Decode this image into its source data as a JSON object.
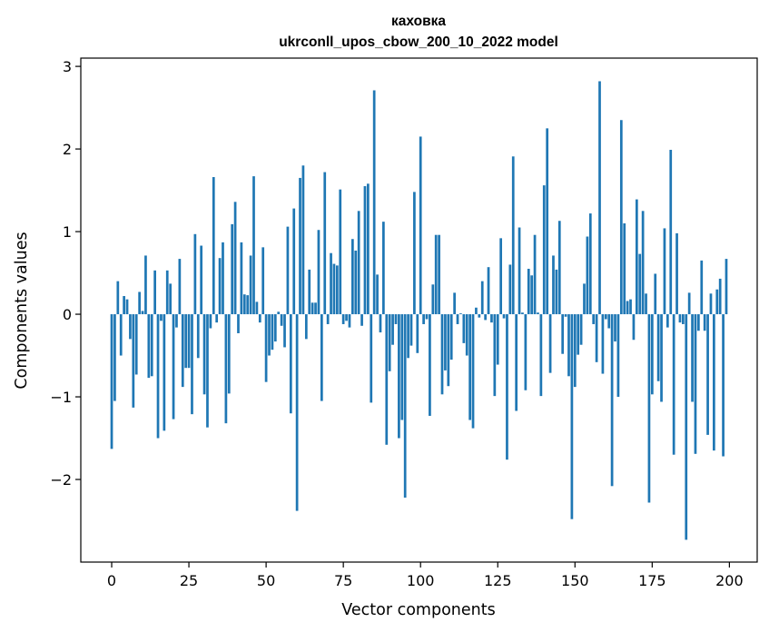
{
  "chart_data": {
    "type": "bar",
    "title": "каховка",
    "subtitle": "ukrconll_upos_cbow_200_10_2022 model",
    "xlabel": "Vector components",
    "ylabel": "Components values",
    "xlim": [
      -10,
      209
    ],
    "ylim": [
      -3.0,
      3.1
    ],
    "xticks": [
      0,
      25,
      50,
      75,
      100,
      125,
      150,
      175,
      200
    ],
    "yticks": [
      -2,
      -1,
      0,
      1,
      2,
      3
    ],
    "ytick_labels": [
      "−2",
      "−1",
      "0",
      "1",
      "2",
      "3"
    ],
    "grid": false,
    "bar_color": "#1f77b4",
    "x": [
      0,
      1,
      2,
      3,
      4,
      5,
      6,
      7,
      8,
      9,
      10,
      11,
      12,
      13,
      14,
      15,
      16,
      17,
      18,
      19,
      20,
      21,
      22,
      23,
      24,
      25,
      26,
      27,
      28,
      29,
      30,
      31,
      32,
      33,
      34,
      35,
      36,
      37,
      38,
      39,
      40,
      41,
      42,
      43,
      44,
      45,
      46,
      47,
      48,
      49,
      50,
      51,
      52,
      53,
      54,
      55,
      56,
      57,
      58,
      59,
      60,
      61,
      62,
      63,
      64,
      65,
      66,
      67,
      68,
      69,
      70,
      71,
      72,
      73,
      74,
      75,
      76,
      77,
      78,
      79,
      80,
      81,
      82,
      83,
      84,
      85,
      86,
      87,
      88,
      89,
      90,
      91,
      92,
      93,
      94,
      95,
      96,
      97,
      98,
      99,
      100,
      101,
      102,
      103,
      104,
      105,
      106,
      107,
      108,
      109,
      110,
      111,
      112,
      113,
      114,
      115,
      116,
      117,
      118,
      119,
      120,
      121,
      122,
      123,
      124,
      125,
      126,
      127,
      128,
      129,
      130,
      131,
      132,
      133,
      134,
      135,
      136,
      137,
      138,
      139,
      140,
      141,
      142,
      143,
      144,
      145,
      146,
      147,
      148,
      149,
      150,
      151,
      152,
      153,
      154,
      155,
      156,
      157,
      158,
      159,
      160,
      161,
      162,
      163,
      164,
      165,
      166,
      167,
      168,
      169,
      170,
      171,
      172,
      173,
      174,
      175,
      176,
      177,
      178,
      179,
      180,
      181,
      182,
      183,
      184,
      185,
      186,
      187,
      188,
      189,
      190,
      191,
      192,
      193,
      194,
      195,
      196,
      197,
      198,
      199
    ],
    "values": [
      -1.63,
      -1.05,
      0.4,
      -0.5,
      0.22,
      0.18,
      -0.3,
      -1.13,
      -0.73,
      0.27,
      0.04,
      0.71,
      -0.77,
      -0.75,
      0.53,
      -1.5,
      -0.08,
      -1.41,
      0.53,
      0.37,
      -1.27,
      -0.16,
      0.67,
      -0.88,
      -0.65,
      -0.65,
      -1.21,
      0.97,
      -0.53,
      0.83,
      -0.97,
      -1.37,
      -0.17,
      1.66,
      -0.1,
      0.68,
      0.87,
      -1.32,
      -0.96,
      1.09,
      1.36,
      -0.23,
      0.87,
      0.24,
      0.23,
      0.71,
      1.67,
      0.15,
      -0.1,
      0.81,
      -0.82,
      -0.5,
      -0.43,
      -0.33,
      0.03,
      -0.14,
      -0.4,
      1.06,
      -1.2,
      1.28,
      -2.38,
      1.65,
      1.8,
      -0.3,
      0.54,
      0.14,
      0.14,
      1.02,
      -1.05,
      1.72,
      -0.12,
      0.74,
      0.61,
      0.59,
      1.51,
      -0.12,
      -0.08,
      -0.16,
      0.91,
      0.77,
      1.25,
      -0.14,
      1.55,
      1.58,
      -1.07,
      2.71,
      0.48,
      -0.22,
      1.12,
      -1.58,
      -0.69,
      -0.37,
      -0.12,
      -1.5,
      -1.28,
      -2.22,
      -0.53,
      -0.38,
      1.48,
      -0.47,
      2.15,
      -0.12,
      -0.06,
      -1.23,
      0.36,
      0.96,
      0.96,
      -0.97,
      -0.68,
      -0.87,
      -0.55,
      0.26,
      -0.12,
      0.01,
      -0.35,
      -0.5,
      -1.28,
      -1.38,
      0.08,
      -0.04,
      0.4,
      -0.07,
      0.57,
      -0.1,
      -0.99,
      -0.61,
      0.92,
      -0.05,
      -1.76,
      0.6,
      1.91,
      -1.17,
      1.05,
      0.02,
      -0.92,
      0.55,
      0.47,
      0.96,
      0.02,
      -0.99,
      1.56,
      2.25,
      -0.71,
      0.71,
      0.54,
      1.13,
      -0.48,
      -0.03,
      -0.75,
      -2.48,
      -0.88,
      -0.49,
      -0.37,
      0.37,
      0.94,
      1.22,
      -0.12,
      -0.58,
      2.82,
      -0.72,
      -0.06,
      -0.17,
      -2.08,
      -0.33,
      -1.0,
      2.35,
      1.1,
      0.16,
      0.18,
      -0.31,
      1.39,
      0.73,
      1.25,
      0.25,
      -2.28,
      -0.97,
      0.49,
      -0.81,
      -1.06,
      1.04,
      -0.16,
      1.99,
      -1.7,
      0.98,
      -0.1,
      -0.12,
      -2.73,
      0.26,
      -1.06,
      -1.69,
      -0.2,
      0.65,
      -0.2,
      -1.46,
      0.25,
      -1.65,
      0.3,
      0.43,
      -1.72,
      0.67
    ]
  }
}
